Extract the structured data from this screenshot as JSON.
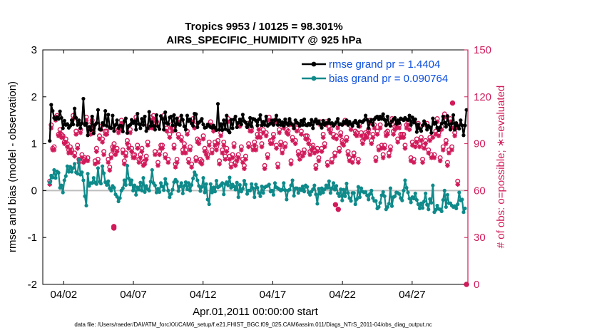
{
  "colors": {
    "rmse": "#000000",
    "bias": "#0f8a8a",
    "obs": "#d11a5a",
    "legend_text": "#0d4fe0",
    "zero_line": "#bdbdbd"
  },
  "chart_data": {
    "type": "line",
    "title": "Tropics 9953 / 10125 = 98.301%",
    "subtitle": "AIRS_SPECIFIC_HUMIDITY @ 925 hPa",
    "xlabel": "Apr.01,2011 00:00:00 start",
    "ylabel": "rmse and bias (model - observation)",
    "y2label": "# of obs: o=possible; ∗=evaluated",
    "xlim": [
      0.5,
      31.0
    ],
    "ylim": [
      -2,
      3
    ],
    "y2lim": [
      0,
      150
    ],
    "x_ticks": [
      2,
      7,
      12,
      17,
      22,
      27
    ],
    "x_tick_labels": [
      "04/02",
      "04/07",
      "04/12",
      "04/17",
      "04/22",
      "04/27"
    ],
    "y_ticks": [
      -2,
      -1,
      0,
      1,
      2,
      3
    ],
    "y_tick_labels": [
      "-2",
      "-1",
      "0",
      "1",
      "2",
      "3"
    ],
    "y2_ticks": [
      0,
      30,
      60,
      90,
      120,
      150
    ],
    "y2_tick_labels": [
      "0",
      "30",
      "60",
      "90",
      "120",
      "150"
    ],
    "legend": [
      {
        "label": "rmse grand pr = 1.4404",
        "series": "rmse"
      },
      {
        "label": "bias grand pr = 0.090764",
        "series": "bias"
      }
    ],
    "legend_position": "top-right",
    "footnote": "data file: /Users/raeder/DAI/ATM_forcXX/CAM6_setup/f.e21.FHIST_BGC.f09_025.CAM6assim.011/Diags_NTrS_2011-04/obs_diag_output.nc",
    "series": [
      {
        "name": "rmse",
        "values": [
          1.06,
          1.83,
          1.7,
          1.55,
          1.52,
          1.56,
          1.53,
          1.69,
          1.55,
          1.33,
          1.49,
          1.4,
          1.42,
          1.34,
          1.38,
          1.5,
          1.41,
          1.75,
          1.55,
          1.4,
          1.5,
          1.33,
          1.44,
          1.96,
          1.4,
          1.43,
          1.18,
          1.36,
          1.29,
          1.58,
          1.22,
          1.4,
          1.44,
          1.72,
          1.31,
          1.3,
          1.44,
          1.4,
          1.7,
          1.38,
          1.62,
          1.34,
          1.33,
          1.6,
          1.27,
          1.4,
          1.5,
          1.33,
          1.38,
          1.38,
          1.26,
          1.48,
          1.54,
          1.23,
          1.38,
          1.4,
          1.51,
          1.44,
          1.48,
          1.3,
          1.64,
          1.42,
          1.33,
          1.53,
          1.4,
          1.58,
          1.27,
          1.33,
          1.68,
          1.38,
          1.46,
          1.38,
          1.3,
          1.61,
          1.37,
          1.31,
          1.59,
          1.53,
          1.3,
          1.67,
          1.44,
          1.42,
          1.56,
          1.58,
          1.39,
          1.61,
          1.28,
          1.54,
          1.41,
          1.4,
          1.6,
          1.51,
          1.37,
          1.3,
          1.6,
          1.48,
          1.52,
          1.43,
          1.38,
          1.64,
          1.63,
          1.35,
          1.45,
          1.48,
          1.53,
          1.41,
          1.34,
          1.35,
          1.41,
          1.38,
          1.35,
          1.34,
          1.39,
          1.34,
          1.29,
          1.85,
          1.3,
          1.42,
          1.29,
          1.5,
          1.31,
          1.6,
          1.28,
          1.24,
          1.51,
          1.33,
          1.52,
          1.58,
          1.35,
          1.45,
          1.52,
          1.41,
          1.62,
          1.48,
          1.45,
          1.35,
          1.41,
          1.55,
          1.37,
          1.53,
          1.52,
          1.49,
          1.39,
          1.52,
          1.61,
          1.39,
          1.47,
          1.4,
          1.58,
          1.38,
          1.41,
          1.43,
          1.5,
          1.4,
          1.5,
          1.6,
          1.4,
          1.5,
          1.4,
          1.46,
          1.38,
          1.52,
          1.43,
          1.4,
          1.53,
          1.43,
          1.4,
          1.33,
          1.5,
          1.45,
          1.43,
          1.38,
          1.49,
          1.4,
          1.52,
          1.4,
          1.39,
          1.43,
          1.4,
          1.51,
          1.33,
          1.47,
          1.52,
          1.43,
          1.48,
          1.42,
          1.34,
          1.49,
          1.4,
          1.44,
          1.44,
          1.51,
          1.43,
          1.44,
          1.38,
          1.42,
          1.46,
          1.53,
          1.41,
          1.42,
          1.4,
          1.47,
          1.44,
          1.5,
          1.4,
          1.47,
          1.42,
          1.38,
          1.45,
          1.49,
          1.44,
          1.37,
          1.48,
          1.47,
          1.46,
          1.5,
          1.6,
          1.51,
          1.33,
          1.47,
          1.51,
          1.4,
          1.52,
          1.56,
          1.58,
          1.52,
          1.58,
          1.53,
          1.63,
          1.51,
          1.39,
          1.58,
          1.42,
          1.38,
          1.48,
          1.52,
          1.55,
          1.42,
          1.5,
          1.44,
          1.54,
          1.52,
          1.5,
          1.55,
          1.52,
          1.5,
          1.6,
          1.4,
          1.56,
          1.45,
          1.52,
          1.25,
          1.41,
          1.32,
          1.27,
          1.39,
          1.48,
          1.42,
          1.3,
          1.38,
          1.35,
          1.23,
          1.54,
          1.42,
          1.45,
          1.34,
          1.29,
          1.35,
          1.43,
          1.58,
          1.45,
          1.36,
          1.59,
          1.41,
          1.3,
          1.43,
          1.61,
          1.3,
          1.44,
          1.38,
          1.32,
          1.5,
          1.39,
          1.18,
          1.39,
          1.72
        ]
      },
      {
        "name": "bias",
        "values": [
          0.17,
          0.32,
          0.28,
          0.44,
          0.27,
          0.41,
          0.38,
          0.06,
          0.11,
          -0.04,
          0.22,
          0.31,
          0.52,
          0.4,
          0.51,
          0.4,
          0.48,
          0.57,
          0.39,
          0.36,
          0.66,
          0.34,
          0.39,
          0.22,
          -0.12,
          -0.32,
          0.36,
          0.1,
          0.16,
          0.16,
          0.27,
          0.17,
          0.14,
          0.48,
          0.19,
          0.15,
          0.52,
          0.37,
          0.18,
          0.12,
          0.2,
          0.05,
          0.0,
          0.1,
          0.06,
          -0.08,
          -0.13,
          -0.23,
          -0.16,
          0.0,
          0.05,
          0.22,
          0.12,
          0.53,
          0.26,
          0.13,
          0.22,
          0.0,
          0.11,
          -0.09,
          0.07,
          0.02,
          0.17,
          0.0,
          0.27,
          -0.03,
          0.1,
          0.03,
          0.0,
          0.19,
          0.44,
          0.16,
          0.11,
          -0.04,
          0.04,
          -0.03,
          0.16,
          0.09,
          0.01,
          0.25,
          0.14,
          0.0,
          -0.14,
          -0.07,
          0.02,
          0.18,
          0.23,
          0.19,
          -0.01,
          0.09,
          0.16,
          -0.06,
          0.1,
          0.18,
          0.03,
          0.16,
          0.0,
          0.12,
          0.26,
          0.39,
          0.33,
          0.22,
          0.1,
          -0.01,
          0.08,
          0.27,
          -0.04,
          0.14,
          -0.19,
          -0.29,
          0.14,
          -0.04,
          0.07,
          -0.02,
          0.21,
          0.07,
          0.09,
          0.12,
          0.16,
          -0.08,
          0.14,
          0.18,
          0.11,
          0.28,
          0.06,
          0.13,
          0.09,
          0.02,
          0.17,
          -0.14,
          0.12,
          -0.02,
          0.04,
          0.21,
          0.13,
          -0.07,
          0.0,
          0.0,
          0.14,
          0.05,
          -0.14,
          0.13,
          0.06,
          -0.05,
          -0.12,
          0.09,
          -0.05,
          0.07,
          0.09,
          0.1,
          0.13,
          -0.02,
          0.0,
          -0.09,
          0.16,
          0.07,
          0.05,
          0.03,
          0.0,
          0.02,
          0.16,
          0.01,
          -0.19,
          0.0,
          0.02,
          0.11,
          0.22,
          -0.11,
          0.05,
          0.05,
          -0.05,
          0.04,
          0.01,
          0.09,
          -0.02,
          0.11,
          0.08,
          -0.04,
          -0.09,
          -0.02,
          0.03,
          0.11,
          -0.08,
          -0.28,
          0.04,
          -0.07,
          0.05,
          -0.04,
          0.03,
          0.11,
          0.06,
          0.2,
          -0.05,
          0.05,
          0.16,
          0.02,
          0.1,
          -0.06,
          -0.12,
          0.03,
          -0.21,
          0.02,
          -0.12,
          0.15,
          -0.05,
          -0.16,
          -0.22,
          -0.05,
          -0.05,
          -0.29,
          -0.18,
          0.08,
          -0.14,
          0.05,
          -0.02,
          -0.04,
          -0.03,
          -0.1,
          -0.19,
          -0.07,
          0.0,
          -0.16,
          -0.22,
          -0.22,
          -0.38,
          -0.35,
          -0.26,
          -0.1,
          -0.03,
          -0.12,
          -0.4,
          -0.35,
          -0.28,
          0.05,
          -0.33,
          -0.14,
          -0.12,
          -0.04,
          -0.05,
          -0.07,
          -0.16,
          -0.21,
          0.0,
          0.22,
          0.06,
          -0.04,
          -0.17,
          -0.25,
          -0.14,
          -0.17,
          -0.06,
          -0.2,
          -0.29,
          -0.38,
          -0.27,
          -0.37,
          -0.23,
          -0.06,
          -0.3,
          -0.4,
          -0.18,
          -0.26,
          0.11,
          -0.46,
          -0.41,
          -0.32,
          -0.39,
          -0.4,
          -0.44,
          -0.2,
          0.0,
          -0.35,
          -0.09,
          -0.27,
          -0.27,
          -0.32,
          -0.35,
          -0.33,
          -0.38,
          -0.29,
          -0.04,
          -0.21,
          -0.19,
          -0.46,
          -0.38
        ]
      },
      {
        "name": "obs_possible",
        "values": [
          66,
          102,
          87,
          88,
          107,
          108,
          96,
          99,
          96,
          95,
          91,
          93,
          90,
          86,
          88,
          86,
          108,
          84,
          98,
          89,
          80,
          99,
          83,
          80,
          81,
          107,
          81,
          102,
          98,
          105,
          100,
          79,
          87,
          80,
          95,
          101,
          93,
          85,
          98,
          98,
          80,
          75,
          83,
          88,
          90,
          85,
          87,
          99,
          101,
          105,
          86,
          79,
          84,
          92,
          89,
          99,
          87,
          83,
          83,
          107,
          89,
          80,
          83,
          87,
          78,
          79,
          82,
          91,
          102,
          107,
          102,
          108,
          85,
          104,
          78,
          85,
          89,
          89,
          108,
          83,
          100,
          80,
          96,
          102,
          100,
          89,
          77,
          80,
          96,
          106,
          94,
          86,
          90,
          86,
          98,
          80,
          88,
          77,
          106,
          102,
          81,
          93,
          92,
          80,
          79,
          95,
          87,
          85,
          83,
          91,
          104,
          86,
          100,
          91,
          88,
          92,
          79,
          97,
          86,
          91,
          82,
          87,
          106,
          82,
          77,
          83,
          90,
          78,
          81,
          83,
          103,
          88,
          80,
          76,
          82,
          103,
          90,
          100,
          100,
          88,
          91,
          88,
          96,
          101,
          96,
          90,
          99,
          76,
          97,
          83,
          107,
          92,
          92,
          96,
          105,
          89,
          77,
          99,
          91,
          86,
          102,
          90,
          99,
          98,
          104,
          79,
          94,
          102,
          92,
          100,
          85,
          82,
          98,
          84,
          86,
          95,
          95,
          92,
          85,
          88,
          89,
          86,
          76,
          87,
          81,
          104,
          87,
          96,
          90,
          104,
          78,
          101,
          99,
          80,
          96,
          84,
          95,
          102,
          87,
          97,
          92,
          91,
          105,
          94,
          85,
          81,
          101,
          80,
          84,
          98,
          97,
          80,
          103,
          97,
          92,
          95,
          97,
          96,
          99,
          105,
          92,
          96,
          102,
          81,
          98,
          88,
          102,
          89,
          83,
          89,
          97,
          98,
          84,
          88,
          106,
          98,
          101,
          102,
          93,
          102,
          96,
          96,
          96,
          89,
          102,
          104,
          101,
          81,
          91,
          80,
          90,
          93,
          103,
          90,
          94,
          80,
          89,
          92,
          103,
          86,
          94,
          83,
          96,
          83,
          98,
          106,
          97,
          81,
          101,
          88,
          109,
          92,
          78,
          86,
          106,
          88,
          102,
          97,
          102,
          66
        ]
      },
      {
        "name": "obs_evaluated",
        "values": [
          64,
          100,
          86,
          86,
          105,
          107,
          95,
          97,
          94,
          94,
          90,
          91,
          88,
          84,
          86,
          84,
          106,
          82,
          96,
          87,
          78,
          97,
          81,
          78,
          79,
          105,
          79,
          100,
          96,
          103,
          98,
          77,
          85,
          78,
          93,
          99,
          91,
          83,
          96,
          96,
          78,
          73,
          81,
          86,
          88,
          83,
          85,
          97,
          99,
          103,
          84,
          77,
          82,
          90,
          87,
          97,
          85,
          81,
          81,
          105,
          87,
          78,
          81,
          85,
          76,
          77,
          80,
          89,
          100,
          105,
          100,
          106,
          83,
          102,
          76,
          83,
          87,
          87,
          106,
          81,
          98,
          78,
          94,
          100,
          98,
          87,
          75,
          78,
          94,
          104,
          92,
          84,
          88,
          84,
          96,
          78,
          86,
          75,
          104,
          100,
          79,
          91,
          90,
          78,
          77,
          93,
          85,
          83,
          81,
          89,
          102,
          84,
          98,
          89,
          86,
          90,
          77,
          95,
          84,
          89,
          80,
          85,
          104,
          80,
          75,
          81,
          88,
          76,
          79,
          81,
          101,
          86,
          78,
          74,
          80,
          101,
          88,
          98,
          98,
          86,
          89,
          86,
          94,
          99,
          94,
          88,
          97,
          74,
          95,
          81,
          105,
          90,
          90,
          94,
          103,
          87,
          75,
          97,
          89,
          84,
          100,
          88,
          97,
          96,
          102,
          77,
          92,
          100,
          90,
          98,
          83,
          80,
          96,
          82,
          84,
          93,
          93,
          90,
          83,
          86,
          87,
          84,
          74,
          85,
          79,
          102,
          85,
          94,
          88,
          102,
          76,
          99,
          97,
          78,
          94,
          82,
          93,
          100,
          85,
          95,
          90,
          89,
          103,
          92,
          83,
          79,
          99,
          78,
          82,
          96,
          95,
          78,
          101,
          95,
          90,
          93,
          95,
          94,
          97,
          103,
          90,
          94,
          100,
          79,
          96,
          86,
          100,
          87,
          81,
          87,
          95,
          96,
          82,
          86,
          104,
          96,
          99,
          100,
          91,
          100,
          94,
          94,
          94,
          87,
          100,
          102,
          99,
          79,
          89,
          78,
          88,
          91,
          101,
          88,
          92,
          78,
          87,
          90,
          101,
          84,
          92,
          81,
          94,
          81,
          96,
          104,
          95,
          79,
          99,
          86,
          107,
          90,
          76,
          84,
          104,
          86,
          100,
          95,
          100,
          64
        ]
      }
    ],
    "outliers": {
      "obs_low": [
        {
          "x": 5.6,
          "value": 36
        },
        {
          "x": 5.6,
          "value": 37
        },
        {
          "x": 21.5,
          "value": 51
        },
        {
          "x": 21.7,
          "value": 48
        },
        {
          "x": 30.9,
          "value": 0
        }
      ],
      "obs_high_right": [
        {
          "x": 29.9,
          "value": 116
        }
      ]
    }
  }
}
